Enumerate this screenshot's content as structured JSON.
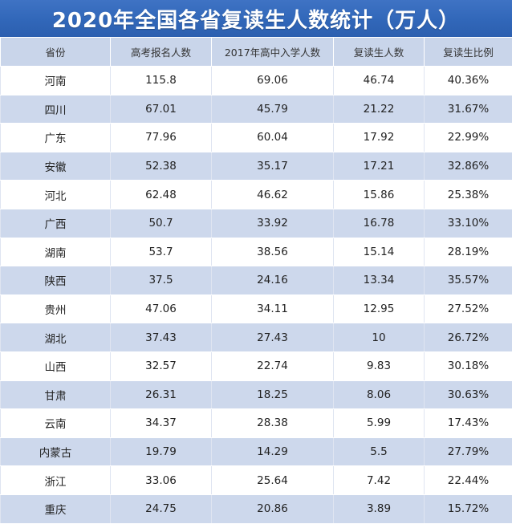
{
  "title": "2020年全国各省复读生人数统计（万人）",
  "columns": [
    "省份",
    "高考报名人数",
    "2017年高中入学人数",
    "复读生人数",
    "复读生比例"
  ],
  "rows": [
    [
      "河南",
      "115.8",
      "69.06",
      "46.74",
      "40.36%"
    ],
    [
      "四川",
      "67.01",
      "45.79",
      "21.22",
      "31.67%"
    ],
    [
      "广东",
      "77.96",
      "60.04",
      "17.92",
      "22.99%"
    ],
    [
      "安徽",
      "52.38",
      "35.17",
      "17.21",
      "32.86%"
    ],
    [
      "河北",
      "62.48",
      "46.62",
      "15.86",
      "25.38%"
    ],
    [
      "广西",
      "50.7",
      "33.92",
      "16.78",
      "33.10%"
    ],
    [
      "湖南",
      "53.7",
      "38.56",
      "15.14",
      "28.19%"
    ],
    [
      "陕西",
      "37.5",
      "24.16",
      "13.34",
      "35.57%"
    ],
    [
      "贵州",
      "47.06",
      "34.11",
      "12.95",
      "27.52%"
    ],
    [
      "湖北",
      "37.43",
      "27.43",
      "10",
      "26.72%"
    ],
    [
      "山西",
      "32.57",
      "22.74",
      "9.83",
      "30.18%"
    ],
    [
      "甘肃",
      "26.31",
      "18.25",
      "8.06",
      "30.63%"
    ],
    [
      "云南",
      "34.37",
      "28.38",
      "5.99",
      "17.43%"
    ],
    [
      "内蒙古",
      "19.79",
      "14.29",
      "5.5",
      "27.79%"
    ],
    [
      "浙江",
      "33.06",
      "25.64",
      "7.42",
      "22.44%"
    ],
    [
      "重庆",
      "24.75",
      "20.86",
      "3.89",
      "15.72%"
    ]
  ],
  "colors": {
    "title_bg": "#3167b9",
    "header_bg": "#c9d5ea",
    "stripe_bg": "#cdd8ec",
    "row_bg": "#ffffff"
  }
}
